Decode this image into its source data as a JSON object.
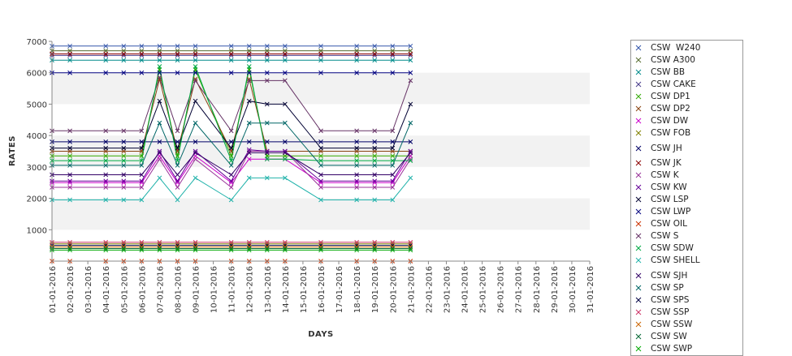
{
  "chart_data": {
    "type": "line",
    "xlabel": "DAYS",
    "ylabel": "RATES",
    "ylim": [
      0,
      7000
    ],
    "yticks": [
      1000,
      2000,
      3000,
      4000,
      5000,
      6000,
      7000
    ],
    "grid": "alternating horizontal bands",
    "legend_position": "right",
    "x_categories": [
      "01-01-2016",
      "02-01-2016",
      "03-01-2016",
      "04-01-2016",
      "05-01-2016",
      "06-01-2016",
      "07-01-2016",
      "08-01-2016",
      "09-01-2016",
      "10-01-2016",
      "11-01-2016",
      "12-01-2016",
      "13-01-2016",
      "14-01-2016",
      "15-01-2016",
      "16-01-2016",
      "17-01-2016",
      "18-01-2016",
      "19-01-2016",
      "20-01-2016",
      "21-01-2016",
      "22-01-2016",
      "23-01-2016",
      "24-01-2016",
      "25-01-2016",
      "26-01-2016",
      "27-01-2016",
      "28-01-2016",
      "29-01-2016",
      "30-01-2016",
      "31-01-2016"
    ],
    "x_dates": [
      "01-01-2016",
      "02-01-2016",
      "04-01-2016",
      "05-01-2016",
      "06-01-2016",
      "07-01-2016",
      "08-01-2016",
      "09-01-2016",
      "11-01-2016",
      "12-01-2016",
      "13-01-2016",
      "14-01-2016",
      "16-01-2016",
      "18-01-2016",
      "19-01-2016",
      "20-01-2016",
      "21-01-2016"
    ],
    "series": [
      {
        "name": "CSW  W240",
        "color": "#3355aa",
        "values": [
          6850,
          6850,
          6850,
          6850,
          6850,
          6850,
          6850,
          6850,
          6850,
          6850,
          6850,
          6850,
          6850,
          6850,
          6850,
          6850,
          6850
        ]
      },
      {
        "name": "CSW A300",
        "color": "#556b2f",
        "values": [
          6700,
          6700,
          6700,
          6700,
          6700,
          6700,
          6700,
          6700,
          6700,
          6700,
          6700,
          6700,
          6700,
          6700,
          6700,
          6700,
          6700
        ]
      },
      {
        "name": "CSW BB",
        "color": "#008b8b",
        "values": [
          6400,
          6400,
          6400,
          6400,
          6400,
          6400,
          6400,
          6400,
          6400,
          6400,
          6400,
          6400,
          6400,
          6400,
          6400,
          6400,
          6400
        ]
      },
      {
        "name": "CSW CAKE",
        "color": "#483d8b",
        "values": [
          6550,
          6550,
          6550,
          6550,
          6550,
          6550,
          6550,
          6550,
          6550,
          6550,
          6550,
          6550,
          6550,
          6550,
          6550,
          6550,
          6550
        ]
      },
      {
        "name": "CSW DP1",
        "color": "#33aa00",
        "values": [
          3350,
          3350,
          3350,
          3350,
          3350,
          6100,
          3350,
          6100,
          3350,
          6100,
          3350,
          3350,
          3350,
          3350,
          3350,
          3350,
          3350
        ]
      },
      {
        "name": "CSW DP2",
        "color": "#8b4513",
        "values": [
          3500,
          3500,
          3500,
          3500,
          3500,
          5800,
          3500,
          5800,
          3500,
          5800,
          3500,
          3500,
          3500,
          3500,
          3500,
          3500,
          3500
        ]
      },
      {
        "name": "CSW DW",
        "color": "#cc00cc",
        "values": [
          2500,
          2500,
          2500,
          2500,
          2500,
          3350,
          2500,
          3350,
          2500,
          3250,
          3250,
          3250,
          2500,
          2500,
          2500,
          2500,
          3350
        ]
      },
      {
        "name": "CSW FOB",
        "color": "#808000",
        "values": [
          550,
          550,
          550,
          550,
          550,
          550,
          550,
          550,
          550,
          550,
          550,
          550,
          550,
          550,
          550,
          550,
          550
        ]
      },
      {
        "name": "CSW JH",
        "color": "#000066",
        "values": [
          3800,
          3800,
          3800,
          3800,
          3800,
          3800,
          3800,
          3800,
          3800,
          3800,
          3800,
          3800,
          3800,
          3800,
          3800,
          3800,
          3800
        ]
      },
      {
        "name": "CSW JK",
        "color": "#8b0000",
        "values": [
          6600,
          6600,
          6600,
          6600,
          6600,
          6600,
          6600,
          6600,
          6600,
          6600,
          6600,
          6600,
          6600,
          6600,
          6600,
          6600,
          6600
        ]
      },
      {
        "name": "CSW K",
        "color": "#993399",
        "values": [
          2350,
          2350,
          2350,
          2350,
          2350,
          3250,
          2350,
          3250,
          2350,
          3500,
          3500,
          3500,
          2350,
          2350,
          2350,
          2350,
          3250
        ]
      },
      {
        "name": "CSW KW",
        "color": "#660099",
        "values": [
          2550,
          2550,
          2550,
          2550,
          2550,
          3500,
          2550,
          3500,
          2550,
          3550,
          3500,
          3500,
          2550,
          2550,
          2550,
          2550,
          3500
        ]
      },
      {
        "name": "CSW LSP",
        "color": "#000033",
        "values": [
          3600,
          3600,
          3600,
          3600,
          3600,
          5100,
          3600,
          5100,
          3600,
          5100,
          5000,
          5000,
          3600,
          3600,
          3600,
          3600,
          5000
        ]
      },
      {
        "name": "CSW LWP",
        "color": "#000080",
        "values": [
          6000,
          6000,
          6000,
          6000,
          6000,
          6000,
          6000,
          6000,
          6000,
          6000,
          6000,
          6000,
          6000,
          6000,
          6000,
          6000,
          6000
        ]
      },
      {
        "name": "CSW OIL",
        "color": "#cc3300",
        "values": [
          0,
          0,
          0,
          0,
          0,
          0,
          0,
          0,
          0,
          0,
          0,
          0,
          0,
          0,
          0,
          0,
          0
        ]
      },
      {
        "name": "CSW S",
        "color": "#663366",
        "values": [
          4150,
          4150,
          4150,
          4150,
          4150,
          5850,
          4150,
          5750,
          4150,
          5750,
          5750,
          5750,
          4150,
          4150,
          4150,
          4150,
          5750
        ]
      },
      {
        "name": "CSW SDW",
        "color": "#00aa44",
        "values": [
          3200,
          3200,
          3200,
          3200,
          3200,
          6200,
          3200,
          6200,
          3200,
          6200,
          3250,
          3250,
          3200,
          3200,
          3200,
          3200,
          3200
        ]
      },
      {
        "name": "CSW SHELL",
        "color": "#20b2aa",
        "values": [
          1950,
          1950,
          1950,
          1950,
          1950,
          2650,
          1950,
          2650,
          1950,
          2650,
          2650,
          2650,
          1950,
          1950,
          1950,
          1950,
          2650
        ]
      },
      {
        "name": "CSW SJH",
        "color": "#330066",
        "values": [
          2750,
          2750,
          2750,
          2750,
          2750,
          3450,
          2750,
          3450,
          2750,
          3450,
          3450,
          3450,
          2750,
          2750,
          2750,
          2750,
          3450
        ]
      },
      {
        "name": "CSW SP",
        "color": "#006666",
        "values": [
          3050,
          3050,
          3050,
          3050,
          3050,
          4400,
          3050,
          4400,
          3050,
          4400,
          4400,
          4400,
          3050,
          3050,
          3050,
          3050,
          4400
        ]
      },
      {
        "name": "CSW SPS",
        "color": "#000044",
        "values": [
          500,
          500,
          500,
          500,
          500,
          500,
          500,
          500,
          500,
          500,
          500,
          500,
          500,
          500,
          500,
          500,
          500
        ]
      },
      {
        "name": "CSW SSP",
        "color": "#cc3366",
        "values": [
          600,
          600,
          600,
          600,
          600,
          600,
          600,
          600,
          600,
          600,
          600,
          600,
          600,
          600,
          600,
          600,
          600
        ]
      },
      {
        "name": "CSW SSW",
        "color": "#cc6600",
        "values": [
          450,
          450,
          450,
          450,
          450,
          450,
          450,
          450,
          450,
          450,
          450,
          450,
          450,
          450,
          450,
          450,
          450
        ]
      },
      {
        "name": "CSW SW",
        "color": "#006633",
        "values": [
          400,
          400,
          400,
          400,
          400,
          400,
          400,
          400,
          400,
          400,
          400,
          400,
          400,
          400,
          400,
          400,
          400
        ]
      },
      {
        "name": "CSW SWP",
        "color": "#00aa00",
        "values": [
          350,
          350,
          350,
          350,
          350,
          350,
          350,
          350,
          350,
          350,
          350,
          350,
          350,
          350,
          350,
          350,
          350
        ]
      }
    ]
  }
}
